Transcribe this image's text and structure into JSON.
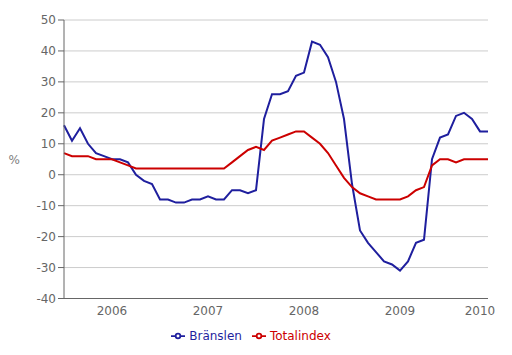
{
  "chart_data": {
    "type": "line",
    "categories": [
      null,
      null,
      null,
      null,
      null,
      null,
      "2006",
      null,
      null,
      null,
      null,
      null,
      null,
      null,
      null,
      null,
      null,
      null,
      "2007",
      null,
      null,
      null,
      null,
      null,
      null,
      null,
      null,
      null,
      null,
      null,
      "2008",
      null,
      null,
      null,
      null,
      null,
      null,
      null,
      null,
      null,
      null,
      null,
      "2009",
      null,
      null,
      null,
      null,
      null,
      null,
      null,
      null,
      null,
      "2010",
      null
    ],
    "series": [
      {
        "name": "Bränslen",
        "color": "#1f1f9e",
        "values": [
          16,
          11,
          15,
          10,
          7,
          6,
          5,
          5,
          4,
          0,
          -2,
          -3,
          -8,
          -8,
          -9,
          -9,
          -8,
          -8,
          -7,
          -8,
          -8,
          -5,
          -5,
          -6,
          -5,
          18,
          26,
          26,
          27,
          32,
          33,
          43,
          42,
          38,
          30,
          18,
          -3,
          -18,
          -22,
          -25,
          -28,
          -29,
          -31,
          -28,
          -22,
          -21,
          5,
          12,
          13,
          19,
          20,
          18,
          14,
          14
        ]
      },
      {
        "name": "Totalindex",
        "color": "#cc0000",
        "values": [
          7,
          6,
          6,
          6,
          5,
          5,
          5,
          4,
          3,
          2,
          2,
          2,
          2,
          2,
          2,
          2,
          2,
          2,
          2,
          2,
          2,
          4,
          6,
          8,
          9,
          8,
          11,
          12,
          13,
          14,
          14,
          12,
          10,
          7,
          3,
          -1,
          -4,
          -6,
          -7,
          -8,
          -8,
          -8,
          -8,
          -7,
          -5,
          -4,
          3,
          5,
          5,
          4,
          5,
          5,
          5,
          5
        ]
      }
    ],
    "ylim": [
      -40,
      50
    ],
    "yticks": [
      -40,
      -30,
      -20,
      -10,
      0,
      10,
      20,
      30,
      40,
      50
    ],
    "ylabel": "%",
    "grid": true,
    "legend": "bottom"
  }
}
